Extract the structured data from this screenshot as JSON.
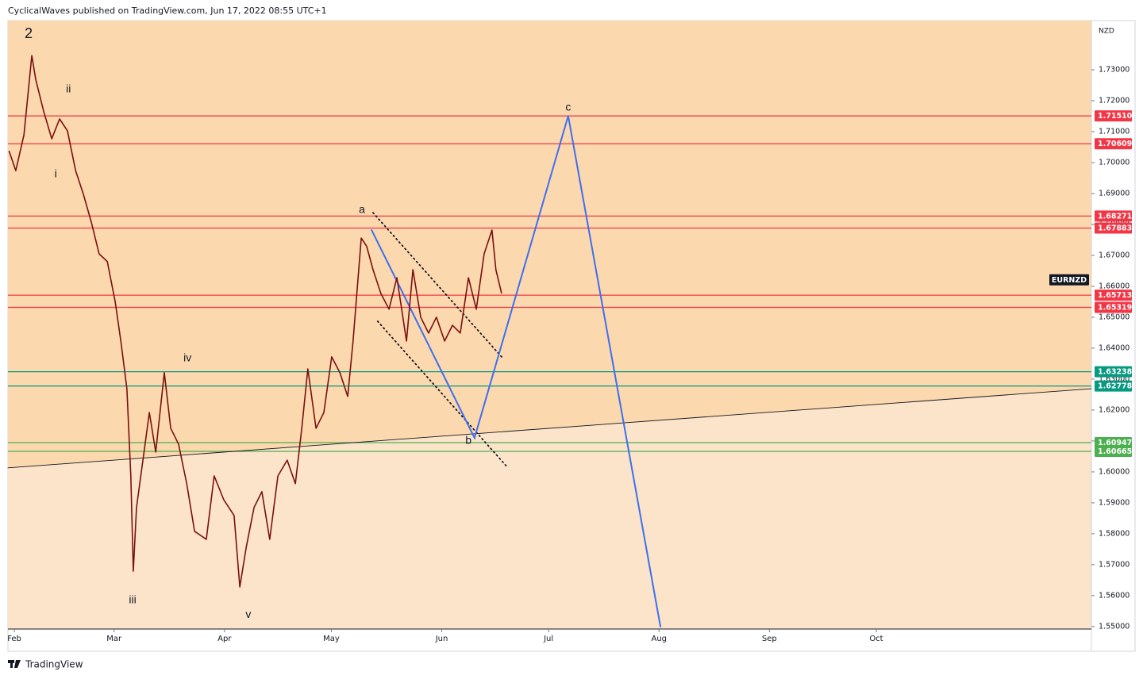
{
  "header": "CyclicalWaves published on TradingView.com, Jun 17, 2022 08:55 UTC+1",
  "footer": "TradingView",
  "chart_data": {
    "type": "line",
    "currency": "NZD",
    "xlim": [
      -1.8,
      302.4
    ],
    "ylim": [
      1.5492,
      1.7459
    ],
    "xticks": [
      {
        "value": 0,
        "label": "Feb"
      },
      {
        "value": 28,
        "label": "Mar"
      },
      {
        "value": 59,
        "label": "Apr"
      },
      {
        "value": 89,
        "label": "May"
      },
      {
        "value": 120,
        "label": "Jun"
      },
      {
        "value": 150,
        "label": "Jul"
      },
      {
        "value": 181,
        "label": "Aug"
      },
      {
        "value": 212,
        "label": "Sep"
      },
      {
        "value": 242,
        "label": "Oct"
      }
    ],
    "yticks": [
      {
        "value": 1.55,
        "label": "1.55000"
      },
      {
        "value": 1.56,
        "label": "1.56000"
      },
      {
        "value": 1.57,
        "label": "1.57000"
      },
      {
        "value": 1.58,
        "label": "1.58000"
      },
      {
        "value": 1.59,
        "label": "1.59000"
      },
      {
        "value": 1.6,
        "label": "1.60000"
      },
      {
        "value": 1.61,
        "label": "1.61000"
      },
      {
        "value": 1.62,
        "label": "1.62000"
      },
      {
        "value": 1.63,
        "label": "1.63000"
      },
      {
        "value": 1.64,
        "label": "1.64000"
      },
      {
        "value": 1.65,
        "label": "1.65000"
      },
      {
        "value": 1.66,
        "label": "1.66000"
      },
      {
        "value": 1.67,
        "label": "1.67000"
      },
      {
        "value": 1.68,
        "label": "1.68000"
      },
      {
        "value": 1.69,
        "label": "1.69000"
      },
      {
        "value": 1.7,
        "label": "1.70000"
      },
      {
        "value": 1.71,
        "label": "1.71000"
      },
      {
        "value": 1.72,
        "label": "1.72000"
      },
      {
        "value": 1.73,
        "label": "1.73000"
      }
    ],
    "series": [
      {
        "name": "EURNZD",
        "color": "#7a1010",
        "x": [
          -1.5,
          0.4,
          2.7,
          4.9,
          6.0,
          8.2,
          10.5,
          12.7,
          14.9,
          17.2,
          19.4,
          21.6,
          23.8,
          26.1,
          28.3,
          29.9,
          31.6,
          32.7,
          33.4,
          34.3,
          36.1,
          37.9,
          39.7,
          42.1,
          43.9,
          46.1,
          48.4,
          50.6,
          53.9,
          56.1,
          58.8,
          61.7,
          63.3,
          65.1,
          67.3,
          69.5,
          71.7,
          74.0,
          76.6,
          78.9,
          80.7,
          82.4,
          84.7,
          86.9,
          89.1,
          91.4,
          93.6,
          95.1,
          97.4,
          98.9,
          100.7,
          102.9,
          105.2,
          107.4,
          110.1,
          111.9,
          114.1,
          116.3,
          118.5,
          120.8,
          123.0,
          125.2,
          127.5,
          129.7,
          131.9,
          134.1,
          135.2,
          136.8
        ],
        "values": [
          1.7038,
          1.6974,
          1.709,
          1.7346,
          1.7269,
          1.7167,
          1.7077,
          1.7141,
          1.7103,
          1.6974,
          1.6897,
          1.6808,
          1.6705,
          1.668,
          1.6551,
          1.6423,
          1.6269,
          1.5987,
          1.5679,
          1.5885,
          1.6038,
          1.6192,
          1.6064,
          1.6321,
          1.6141,
          1.609,
          1.5962,
          1.5808,
          1.5782,
          1.5987,
          1.591,
          1.5859,
          1.5628,
          1.5756,
          1.5885,
          1.5936,
          1.5782,
          1.5987,
          1.6038,
          1.5962,
          1.6141,
          1.6333,
          1.6141,
          1.6192,
          1.6372,
          1.6321,
          1.6244,
          1.6423,
          1.6756,
          1.673,
          1.6654,
          1.6577,
          1.6526,
          1.6628,
          1.6423,
          1.6654,
          1.65,
          1.6449,
          1.65,
          1.6423,
          1.6474,
          1.6449,
          1.6628,
          1.6526,
          1.6705,
          1.6782,
          1.6654,
          1.6577
        ]
      }
    ],
    "last_price": 1.6621,
    "levels": [
      {
        "value": 1.7151,
        "label": "1.71510",
        "color": "#f23645"
      },
      {
        "value": 1.70609,
        "label": "1.70609",
        "color": "#f23645"
      },
      {
        "value": 1.68271,
        "label": "1.68271",
        "color": "#f23645"
      },
      {
        "value": 1.67883,
        "label": "1.67883",
        "color": "#f23645"
      },
      {
        "value": 1.65713,
        "label": "1.65713",
        "color": "#f23645"
      },
      {
        "value": 1.65319,
        "label": "1.65319",
        "color": "#f23645"
      },
      {
        "value": 1.63238,
        "label": "1.63238",
        "color": "#089981"
      },
      {
        "value": 1.62778,
        "label": "1.62778",
        "color": "#089981"
      },
      {
        "value": 1.60947,
        "label": "1.60947",
        "color": "#4caf50"
      },
      {
        "value": 1.60665,
        "label": "1.60665",
        "color": "#4caf50"
      }
    ],
    "drawings": [
      {
        "x": [
          -1.8,
          302.4
        ],
        "y": [
          1.6013,
          1.6269
        ],
        "color": "#131722",
        "style": "solid"
      },
      {
        "x": [
          100.7,
          136.8
        ],
        "y": [
          1.6838,
          1.6372
        ],
        "color": "#131722",
        "style": "dotted"
      },
      {
        "x": [
          102.0,
          138.6
        ],
        "y": [
          1.6487,
          1.6013
        ],
        "color": "#131722",
        "style": "dotted"
      },
      {
        "x": [
          100.3,
          129.2,
          155.5,
          181.4
        ],
        "y": [
          1.6782,
          1.611,
          1.7151,
          1.55
        ],
        "color": "#3d6ff0",
        "style": "solid"
      }
    ],
    "wave_labels": [
      {
        "text": "2",
        "x": 4.0,
        "y": 1.7415
      },
      {
        "text": "ii",
        "x": 15.2,
        "y": 1.7236
      },
      {
        "text": "i",
        "x": 11.6,
        "y": 1.6962
      },
      {
        "text": "iii",
        "x": 33.2,
        "y": 1.5585
      },
      {
        "text": "iv",
        "x": 48.6,
        "y": 1.6367
      },
      {
        "text": "v",
        "x": 65.7,
        "y": 1.5538
      },
      {
        "text": "a",
        "x": 97.6,
        "y": 1.6846
      },
      {
        "text": "b",
        "x": 127.5,
        "y": 1.61
      },
      {
        "text": "c",
        "x": 155.5,
        "y": 1.7177
      }
    ]
  }
}
